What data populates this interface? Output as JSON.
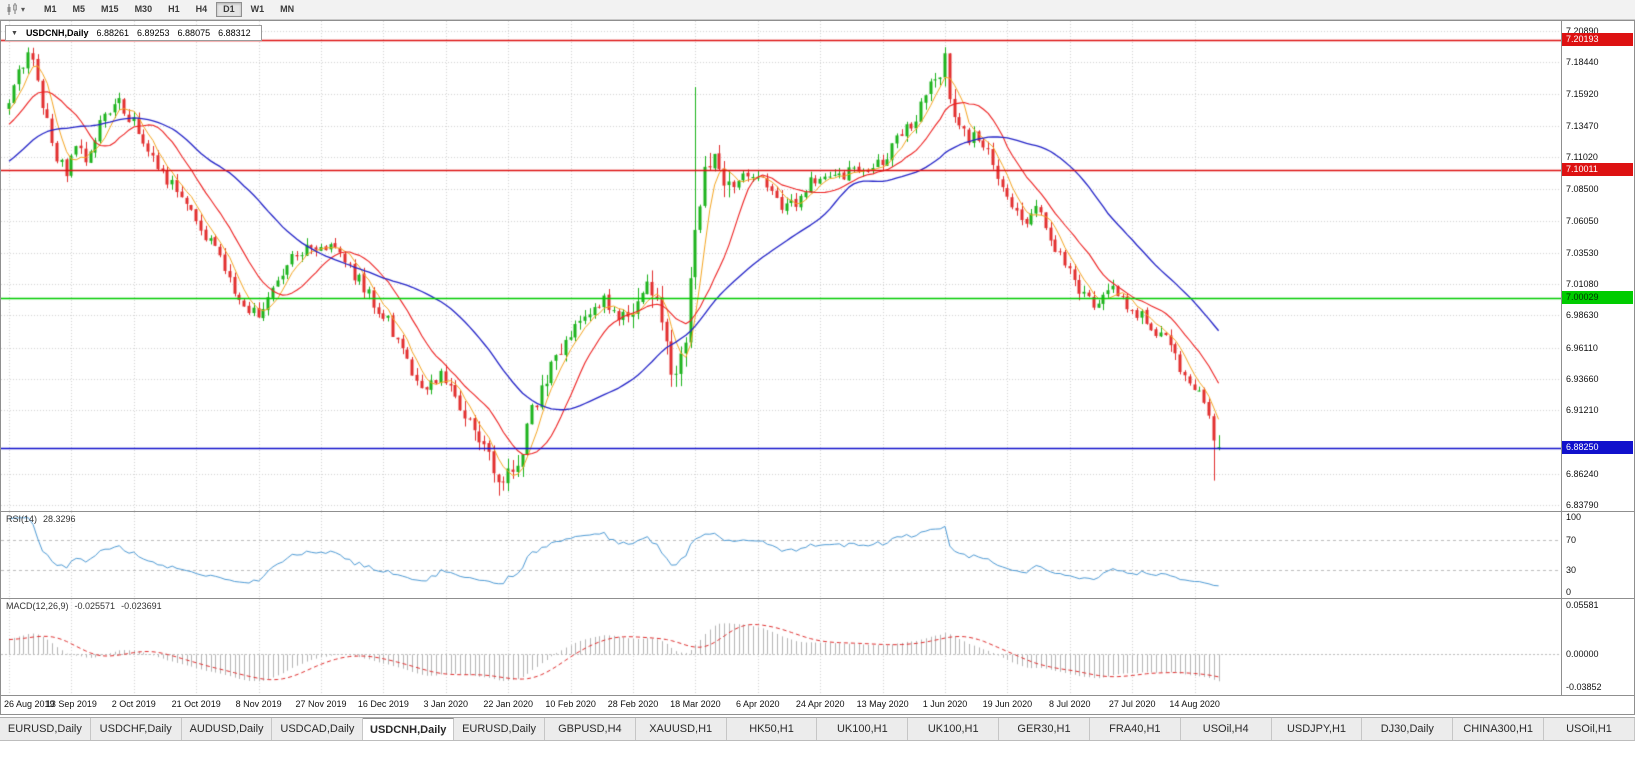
{
  "toolbar": {
    "timeframes": {
      "items": [
        "M1",
        "M5",
        "M15",
        "M30",
        "H1",
        "H4",
        "D1",
        "W1",
        "MN"
      ],
      "active": "D1"
    }
  },
  "chart": {
    "title": {
      "collapse_arrow": "▼",
      "symbol": "USDCNH,Daily",
      "open": "6.88261",
      "high": "6.89253",
      "low": "6.88075",
      "close": "6.88312"
    },
    "axis_max": 7.2089,
    "axis_min": 6.8379,
    "price_axis": [
      "7.20890",
      "7.18440",
      "7.15920",
      "7.13470",
      "7.11020",
      "7.08500",
      "7.06050",
      "7.03530",
      "7.01080",
      "6.98630",
      "6.96110",
      "6.93660",
      "6.91210",
      "6.86240",
      "6.83790"
    ],
    "hlines": [
      {
        "price": 7.20193,
        "label": "7.20193",
        "color": "#dd1111",
        "text": "#ffffff"
      },
      {
        "price": 7.10011,
        "label": "7.10011",
        "color": "#dd1111",
        "text": "#ffffff"
      },
      {
        "price": 7.00029,
        "label": "7.00029",
        "color": "#00cc00",
        "text": "#003300"
      },
      {
        "price": 6.8825,
        "label": "6.88250",
        "color": "#1111cc",
        "text": "#ffffff"
      }
    ],
    "colors": {
      "bull": "#1db31d",
      "bear": "#e23030",
      "ma_fast": "#f5a623",
      "ma_mid": "#ee2222",
      "ma_slow": "#2424c8",
      "grid": "#d4d4d4"
    }
  },
  "rsi": {
    "name": "RSI(14)",
    "value": "28.3296",
    "axis": [
      "100",
      "70",
      "30",
      "0"
    ],
    "levels": [
      70,
      30
    ],
    "color": "#4f9bd5"
  },
  "macd": {
    "name": "MACD(12,26,9)",
    "value_main": "-0.025571",
    "value_signal": "-0.023691",
    "axis": [
      "0.05581",
      "0.00000",
      "-0.03852"
    ],
    "max": 0.05581,
    "min": -0.03852,
    "hist_color": "#b5b5b5",
    "signal_color": "#e03030"
  },
  "dates": [
    "26 Aug 2019",
    "13 Sep 2019",
    "2 Oct 2019",
    "21 Oct 2019",
    "8 Nov 2019",
    "27 Nov 2019",
    "16 Dec 2019",
    "3 Jan 2020",
    "22 Jan 2020",
    "10 Feb 2020",
    "28 Feb 2020",
    "18 Mar 2020",
    "6 Apr 2020",
    "24 Apr 2020",
    "13 May 2020",
    "1 Jun 2020",
    "19 Jun 2020",
    "8 Jul 2020",
    "27 Jul 2020",
    "14 Aug 2020"
  ],
  "tabs": {
    "items": [
      "EURUSD,Daily",
      "USDCHF,Daily",
      "AUDUSD,Daily",
      "USDCAD,Daily",
      "USDCNH,Daily",
      "EURUSD,Daily",
      "GBPUSD,H4",
      "XAUUSD,H1",
      "HK50,H1",
      "UK100,H1",
      "UK100,H1",
      "GER30,H1",
      "FRA40,H1",
      "USOil,H4",
      "USDJPY,H1",
      "DJ30,Daily",
      "CHINA300,H1",
      "USOil,H1"
    ],
    "active_index": 4
  },
  "chart_data": {
    "type": "candlestick",
    "symbol": "USDCNH",
    "timeframe": "Daily",
    "candle_count": 253,
    "bars_per_tick": 13,
    "last_ohlc": {
      "open": 6.88261,
      "high": 6.89253,
      "low": 6.88075,
      "close": 6.88312
    },
    "moving_averages": [
      {
        "period": 5,
        "color_key": "ma_fast"
      },
      {
        "period": 13,
        "color_key": "ma_mid"
      },
      {
        "period": 34,
        "color_key": "ma_slow"
      }
    ],
    "price_waypoints": [
      [
        0,
        7.152
      ],
      [
        2,
        7.178
      ],
      [
        4,
        7.192
      ],
      [
        6,
        7.17
      ],
      [
        8,
        7.138
      ],
      [
        10,
        7.112
      ],
      [
        12,
        7.098
      ],
      [
        14,
        7.118
      ],
      [
        16,
        7.108
      ],
      [
        18,
        7.128
      ],
      [
        20,
        7.148
      ],
      [
        23,
        7.152
      ],
      [
        26,
        7.138
      ],
      [
        29,
        7.112
      ],
      [
        32,
        7.098
      ],
      [
        35,
        7.082
      ],
      [
        39,
        7.062
      ],
      [
        42,
        7.042
      ],
      [
        45,
        7.022
      ],
      [
        48,
        7.002
      ],
      [
        51,
        6.988
      ],
      [
        53,
        6.992
      ],
      [
        55,
        7.008
      ],
      [
        58,
        7.028
      ],
      [
        62,
        7.038
      ],
      [
        66,
        7.042
      ],
      [
        69,
        7.032
      ],
      [
        72,
        7.018
      ],
      [
        75,
        7.002
      ],
      [
        78,
        6.988
      ],
      [
        81,
        6.968
      ],
      [
        84,
        6.942
      ],
      [
        87,
        6.93
      ],
      [
        90,
        6.938
      ],
      [
        93,
        6.924
      ],
      [
        96,
        6.9
      ],
      [
        99,
        6.878
      ],
      [
        102,
        6.862
      ],
      [
        104,
        6.858
      ],
      [
        106,
        6.874
      ],
      [
        109,
        6.908
      ],
      [
        112,
        6.94
      ],
      [
        115,
        6.962
      ],
      [
        118,
        6.978
      ],
      [
        121,
        6.992
      ],
      [
        124,
        7.0
      ],
      [
        127,
        6.986
      ],
      [
        130,
        6.992
      ],
      [
        133,
        7.015
      ],
      [
        135,
        6.995
      ],
      [
        137,
        6.962
      ],
      [
        139,
        6.935
      ],
      [
        141,
        6.958
      ],
      [
        143,
        7.06
      ],
      [
        145,
        7.102
      ],
      [
        147,
        7.112
      ],
      [
        149,
        7.088
      ],
      [
        152,
        7.092
      ],
      [
        155,
        7.098
      ],
      [
        158,
        7.085
      ],
      [
        161,
        7.068
      ],
      [
        164,
        7.075
      ],
      [
        167,
        7.09
      ],
      [
        170,
        7.094
      ],
      [
        173,
        7.096
      ],
      [
        176,
        7.1
      ],
      [
        179,
        7.104
      ],
      [
        182,
        7.108
      ],
      [
        185,
        7.122
      ],
      [
        188,
        7.136
      ],
      [
        191,
        7.154
      ],
      [
        193,
        7.172
      ],
      [
        195,
        7.186
      ],
      [
        196,
        7.158
      ],
      [
        198,
        7.136
      ],
      [
        200,
        7.122
      ],
      [
        202,
        7.128
      ],
      [
        204,
        7.112
      ],
      [
        206,
        7.096
      ],
      [
        208,
        7.078
      ],
      [
        210,
        7.068
      ],
      [
        212,
        7.062
      ],
      [
        214,
        7.07
      ],
      [
        216,
        7.058
      ],
      [
        218,
        7.04
      ],
      [
        220,
        7.026
      ],
      [
        222,
        7.012
      ],
      [
        224,
        7.0
      ],
      [
        226,
        6.992
      ],
      [
        228,
        7.0
      ],
      [
        230,
        7.006
      ],
      [
        232,
        7.0
      ],
      [
        234,
        6.99
      ],
      [
        236,
        6.986
      ],
      [
        238,
        6.978
      ],
      [
        240,
        6.972
      ],
      [
        242,
        6.96
      ],
      [
        244,
        6.944
      ],
      [
        246,
        6.934
      ],
      [
        248,
        6.922
      ],
      [
        249,
        6.918
      ],
      [
        250,
        6.912
      ],
      [
        251,
        6.888
      ],
      [
        252,
        6.8831
      ]
    ],
    "wick_events": [
      {
        "i": 4,
        "type": "high",
        "price": 7.196
      },
      {
        "i": 102,
        "type": "low",
        "price": 6.8452
      },
      {
        "i": 104,
        "type": "low",
        "price": 6.849
      },
      {
        "i": 143,
        "type": "high",
        "price": 7.165
      },
      {
        "i": 195,
        "type": "high",
        "price": 7.1962
      },
      {
        "i": 251,
        "type": "low",
        "price": 6.857
      }
    ],
    "volatility_zones": [
      [
        95,
        115,
        1.6
      ],
      [
        130,
        150,
        1.9
      ],
      [
        190,
        200,
        1.4
      ]
    ]
  }
}
